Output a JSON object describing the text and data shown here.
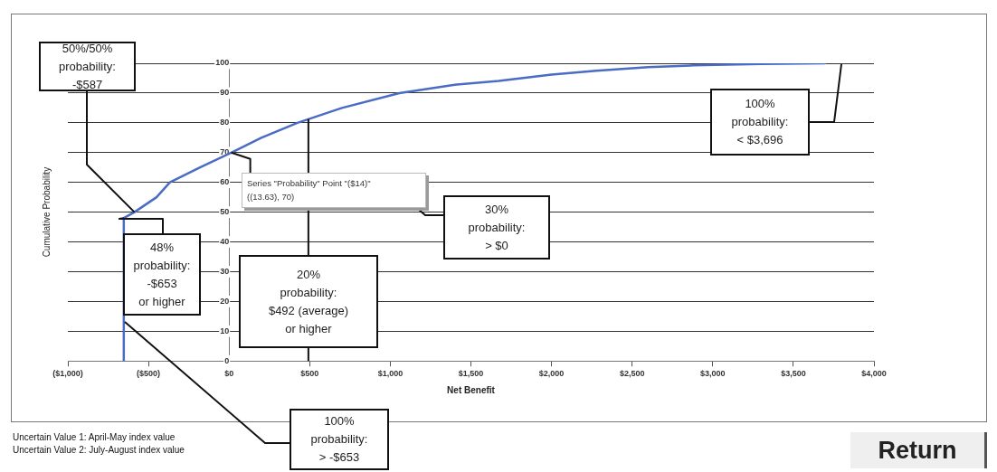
{
  "chart_data": {
    "type": "line",
    "xlabel": "Net Benefit",
    "ylabel": "Cumulative Probability",
    "x": [
      -653,
      -653,
      -587,
      -450,
      -367,
      -180,
      13.63,
      200,
      424,
      700,
      1056,
      1400,
      1672,
      2000,
      2277,
      2600,
      2881,
      3300,
      3696
    ],
    "series": [
      {
        "color": "#4a6cc4",
        "values": [
          0,
          48,
          50,
          55,
          60,
          65,
          70,
          75,
          80,
          85,
          90,
          92.8,
          94.1,
          96.2,
          97.5,
          98.7,
          99.3,
          99.8,
          100
        ]
      }
    ],
    "xlim": [
      -1000,
      4000
    ],
    "xticks": [
      {
        "value": -1000,
        "label": "($1,000)"
      },
      {
        "value": -500,
        "label": "($500)"
      },
      {
        "value": 0,
        "label": "$0"
      },
      {
        "value": 500,
        "label": "$500"
      },
      {
        "value": 1000,
        "label": "$1,000"
      },
      {
        "value": 1500,
        "label": "$1,500"
      },
      {
        "value": 2000,
        "label": "$2,000"
      },
      {
        "value": 2500,
        "label": "$2,500"
      },
      {
        "value": 3000,
        "label": "$3,000"
      },
      {
        "value": 3500,
        "label": "$3,500"
      },
      {
        "value": 4000,
        "label": "$4,000"
      }
    ],
    "ylim": [
      0,
      100
    ],
    "yticks": [
      0,
      10,
      20,
      30,
      40,
      50,
      60,
      70,
      80,
      90,
      100
    ],
    "grid": "y",
    "legend": false,
    "marker": "none",
    "line_style": "solid",
    "ref_lines": [
      {
        "axis": "x",
        "value": 492,
        "label": "20% probability: $492 (average) or higher"
      }
    ],
    "annotations": [
      {
        "text": "50%/50% probability: -$587",
        "x": -587,
        "y": 50
      },
      {
        "text": "48% probability: -$653 or higher",
        "x": -653,
        "y": 48
      },
      {
        "text": "Series \"Probability\" Point \"($14)\" ((13.63), 70)",
        "x": 13.63,
        "y": 70
      },
      "30% probability: > $0",
      "100% probability: < $3,696",
      "100% probability: > -$653",
      "Uncertain Value 1: April-May index value",
      "Uncertain Value 2: July-August index value",
      "Return"
    ]
  }
}
